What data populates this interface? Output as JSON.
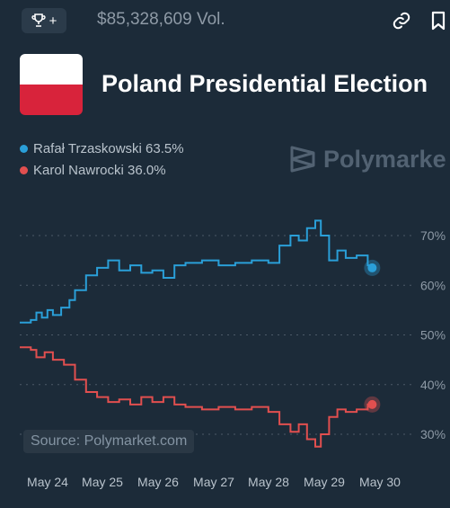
{
  "header": {
    "trophy_plus": "+",
    "volume": "$85,328,609 Vol."
  },
  "market": {
    "title": "Poland Presidential Election"
  },
  "legend": [
    {
      "label": "Rafał Trzaskowski 63.5%",
      "color": "#2a9fd8"
    },
    {
      "label": "Karol Nawrocki 36.0%",
      "color": "#e14f4f"
    }
  ],
  "watermark": "Polymarke",
  "source": "Source: Polymarket.com",
  "colors": {
    "background": "#1c2b39",
    "blue": "#2a9fd8",
    "red": "#e14f4f",
    "grid": "#4c5a68"
  },
  "chart_data": {
    "type": "line",
    "x_tick_labels": [
      "May 24",
      "May 25",
      "May 26",
      "May 27",
      "May 28",
      "May 29",
      "May 30"
    ],
    "y_tick_labels": [
      "70%",
      "60%",
      "50%",
      "40%",
      "30%"
    ],
    "ylim": [
      25,
      75
    ],
    "grid": "horizontal dotted",
    "series": [
      {
        "name": "Rafał Trzaskowski",
        "color": "#2a9fd8",
        "x": [
          0,
          0.2,
          0.3,
          0.4,
          0.5,
          0.6,
          0.75,
          0.9,
          1.0,
          1.2,
          1.4,
          1.6,
          1.8,
          2.0,
          2.2,
          2.4,
          2.6,
          2.8,
          3.0,
          3.3,
          3.6,
          3.9,
          4.2,
          4.5,
          4.7,
          4.9,
          5.05,
          5.2,
          5.35,
          5.45,
          5.6,
          5.75,
          5.9,
          6.1,
          6.3,
          6.38
        ],
        "values": [
          52.5,
          53,
          54.5,
          53.5,
          55,
          54,
          55.5,
          57,
          59,
          62,
          63.5,
          65,
          63,
          64,
          62.5,
          63,
          61.5,
          64,
          64.5,
          65,
          64,
          64.5,
          65,
          64.5,
          68,
          70,
          69,
          71.5,
          73,
          70,
          65,
          67,
          65.5,
          66,
          64,
          63.5
        ]
      },
      {
        "name": "Karol Nawrocki",
        "color": "#e14f4f",
        "x": [
          0,
          0.2,
          0.3,
          0.45,
          0.6,
          0.8,
          1.0,
          1.2,
          1.4,
          1.6,
          1.8,
          2.0,
          2.2,
          2.4,
          2.6,
          2.8,
          3.0,
          3.3,
          3.6,
          3.9,
          4.2,
          4.5,
          4.7,
          4.9,
          5.05,
          5.2,
          5.35,
          5.45,
          5.6,
          5.75,
          5.9,
          6.1,
          6.3,
          6.38
        ],
        "values": [
          47.5,
          47,
          45.5,
          46.5,
          45,
          44,
          41,
          38.5,
          37.5,
          36.5,
          37,
          36,
          37.5,
          36.5,
          37.5,
          36,
          35.5,
          35,
          35.5,
          35,
          35.5,
          34.5,
          32,
          30.5,
          32,
          29,
          27.5,
          30,
          33.5,
          35,
          34.5,
          35,
          36,
          36
        ]
      }
    ]
  }
}
